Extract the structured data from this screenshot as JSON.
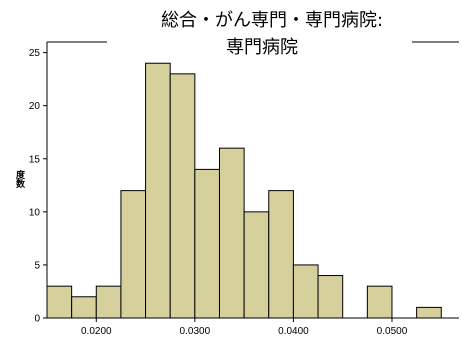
{
  "chart_data": {
    "type": "bar",
    "title_line1": "総合・がん専門・専門病院:",
    "title_line2": "専門病院",
    "ylabel": "度数",
    "xlabel": "",
    "bar_color": "#d5d09c",
    "bar_stroke": "#000000",
    "bin_start": 0.015,
    "bin_width": 0.0025,
    "bins": [
      {
        "x0": 0.015,
        "x1": 0.0175,
        "count": 3
      },
      {
        "x0": 0.0175,
        "x1": 0.02,
        "count": 2
      },
      {
        "x0": 0.02,
        "x1": 0.0225,
        "count": 3
      },
      {
        "x0": 0.0225,
        "x1": 0.025,
        "count": 12
      },
      {
        "x0": 0.025,
        "x1": 0.0275,
        "count": 24
      },
      {
        "x0": 0.0275,
        "x1": 0.03,
        "count": 23
      },
      {
        "x0": 0.03,
        "x1": 0.0325,
        "count": 14
      },
      {
        "x0": 0.0325,
        "x1": 0.035,
        "count": 16
      },
      {
        "x0": 0.035,
        "x1": 0.0375,
        "count": 10
      },
      {
        "x0": 0.0375,
        "x1": 0.04,
        "count": 12
      },
      {
        "x0": 0.04,
        "x1": 0.0425,
        "count": 5
      },
      {
        "x0": 0.0425,
        "x1": 0.045,
        "count": 4
      },
      {
        "x0": 0.045,
        "x1": 0.0475,
        "count": 0
      },
      {
        "x0": 0.0475,
        "x1": 0.05,
        "count": 3
      },
      {
        "x0": 0.05,
        "x1": 0.0525,
        "count": 0
      },
      {
        "x0": 0.0525,
        "x1": 0.055,
        "count": 1
      }
    ],
    "xlim": [
      0.015,
      0.0568
    ],
    "ylim": [
      0,
      26
    ],
    "x_ticks": [
      0.02,
      0.03,
      0.04,
      0.05
    ],
    "x_tick_labels": [
      "0.0200",
      "0.0300",
      "0.0400",
      "0.0500"
    ],
    "y_ticks": [
      0,
      5,
      10,
      15,
      20,
      25
    ],
    "y_tick_labels": [
      "0",
      "5",
      "10",
      "15",
      "20",
      "25"
    ],
    "grid": false,
    "legend": "none"
  }
}
